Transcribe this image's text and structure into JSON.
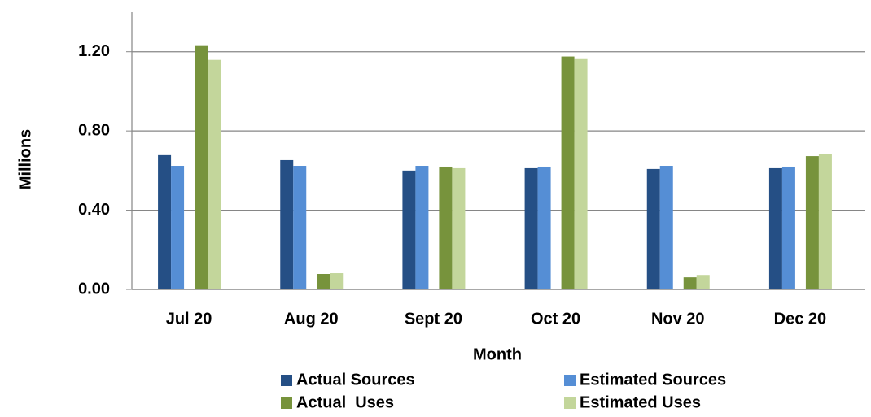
{
  "chart_data": {
    "type": "bar",
    "y_label": "Millions",
    "x_label": "Month",
    "categories": [
      "Jul 20",
      "Aug 20",
      "Sept 20",
      "Oct 20",
      "Nov 20",
      "Dec 20"
    ],
    "series": [
      {
        "name": "Actual Sources",
        "color": "#254f85",
        "values": [
          0.678,
          0.653,
          0.6,
          0.612,
          0.608,
          0.612
        ]
      },
      {
        "name": "Estimated Sources",
        "color": "#558ed5",
        "values": [
          0.624,
          0.624,
          0.624,
          0.62,
          0.624,
          0.62
        ]
      },
      {
        "name": "Actual  Uses",
        "color": "#77933c",
        "values": [
          1.233,
          0.078,
          0.62,
          1.176,
          0.061,
          0.673
        ]
      },
      {
        "name": "Estimated Uses",
        "color": "#c3d69b",
        "values": [
          1.159,
          0.082,
          0.612,
          1.167,
          0.073,
          0.682
        ]
      }
    ],
    "ylim": [
      0,
      1.4
    ],
    "yticks": [
      {
        "value": 0,
        "label": "0.00"
      },
      {
        "value": 0.4,
        "label": "0.40"
      },
      {
        "value": 0.8,
        "label": "0.80"
      },
      {
        "value": 1.2,
        "label": "1.20"
      }
    ],
    "grid": true
  }
}
